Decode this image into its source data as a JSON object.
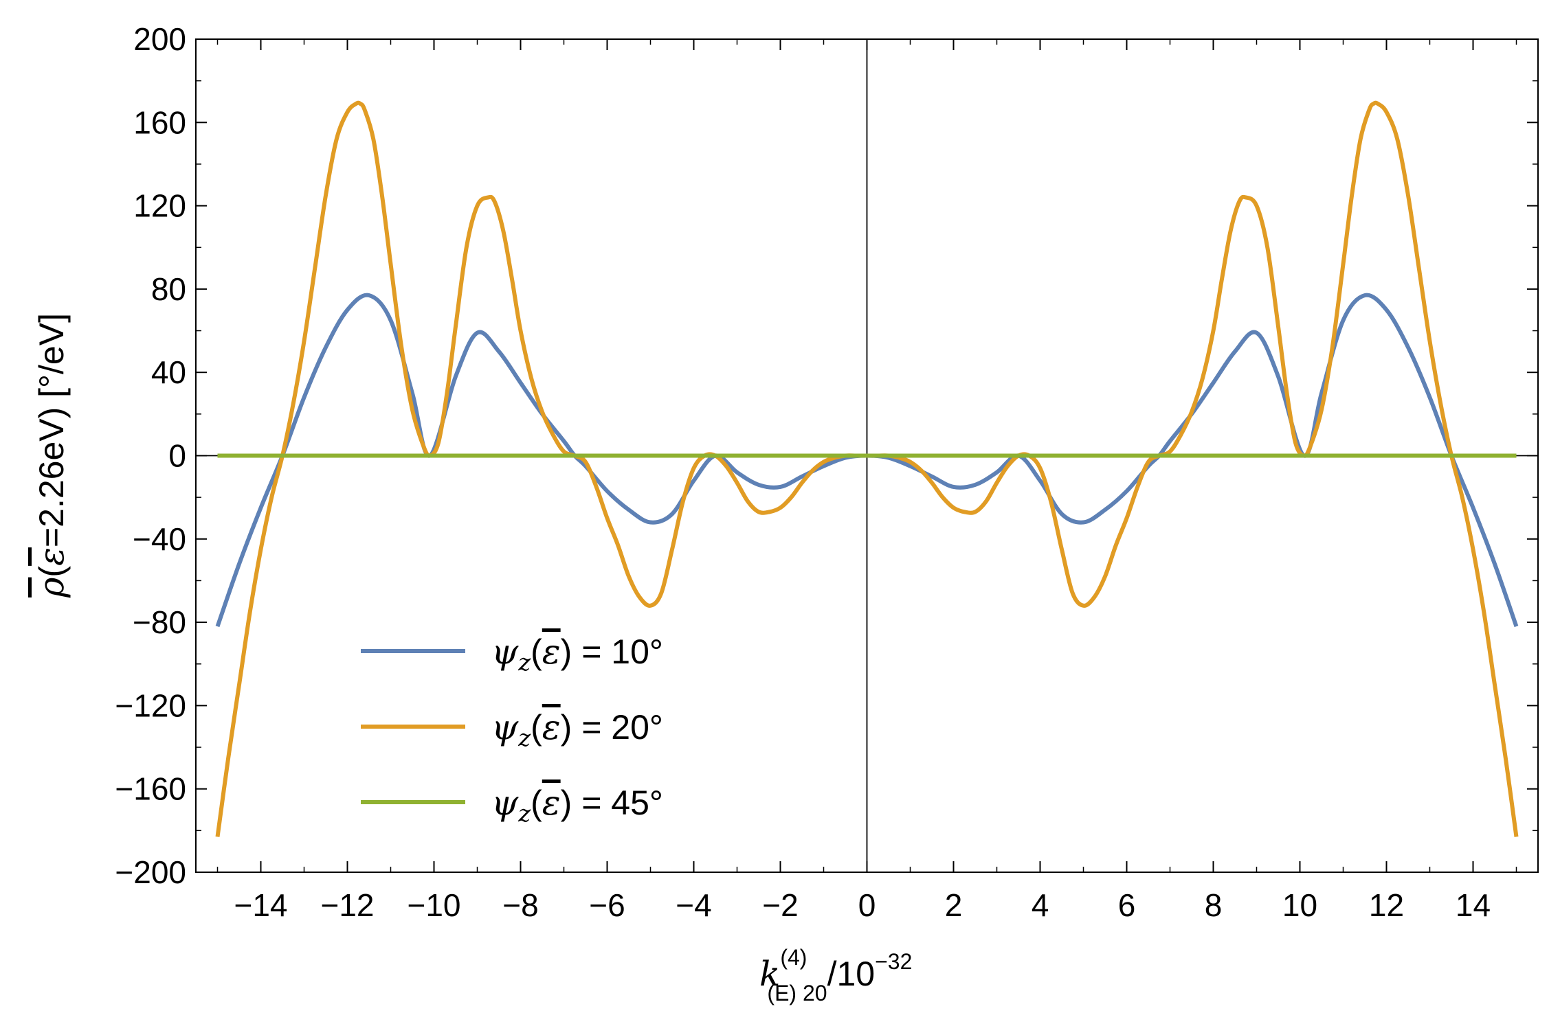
{
  "chart_data": {
    "type": "line",
    "xlabel": "k(E) 20 (4) / 10^-32",
    "ylabel": "ρ(ε=2.26eV) [°/eV]",
    "xlabel_parts": {
      "base": "k",
      "sub": "(E) 20",
      "sup": "(4)",
      "tail": "/10",
      "tail_sup": "−32"
    },
    "ylabel_parts": {
      "overbar_rho": "ρ",
      "open": "(",
      "overbar_eps": "ε",
      "rest": "=2.26eV) [°/eV]"
    },
    "xlim": [
      -15.5,
      15.5
    ],
    "ylim": [
      -200,
      200
    ],
    "x_ticks": [
      -14,
      -12,
      -10,
      -8,
      -6,
      -4,
      -2,
      0,
      2,
      4,
      6,
      8,
      10,
      12,
      14
    ],
    "x_tick_labels": [
      "−14",
      "−12",
      "−10",
      "−8",
      "−6",
      "−4",
      "−2",
      "0",
      "2",
      "4",
      "6",
      "8",
      "10",
      "12",
      "14"
    ],
    "y_ticks": [
      200,
      160,
      120,
      80,
      40,
      0,
      -40,
      -80,
      -120,
      -160,
      -200
    ],
    "y_tick_labels": [
      "200",
      "160",
      "120",
      "80",
      "40",
      "0",
      "−40",
      "−80",
      "−120",
      "−160",
      "−200"
    ],
    "grid": false,
    "legend_position": "bottom-left",
    "series": [
      {
        "name": "ψz(ε) = 10°",
        "legend": {
          "psi": "ψ",
          "sub": "z",
          "eps": "ε",
          "value": " = 10°"
        },
        "color": "#5E81B5",
        "x": [
          -15,
          -14.5,
          -14,
          -13.5,
          -13,
          -12.5,
          -12,
          -11.5,
          -11,
          -10.5,
          -10.1,
          -9.5,
          -9,
          -8.5,
          -8,
          -7.5,
          -7,
          -6.75,
          -6.5,
          -6,
          -5.5,
          -5,
          -4.5,
          -4,
          -3.5,
          -3,
          -2.5,
          -2,
          -1.5,
          -1,
          -0.5,
          0,
          0.5,
          1,
          1.5,
          2,
          2.5,
          3,
          3.5,
          4,
          4.5,
          5,
          5.5,
          6,
          6.5,
          6.75,
          7,
          7.5,
          8,
          8.5,
          9,
          9.5,
          10.1,
          10.5,
          11,
          11.5,
          12,
          12.5,
          13,
          13.5,
          14,
          14.5,
          15
        ],
        "y": [
          -82,
          -52,
          -25,
          0,
          28,
          52,
          70,
          77,
          65,
          30,
          0,
          38,
          59,
          50,
          35,
          20,
          7,
          0,
          -5,
          -17,
          -26,
          -32,
          -28,
          -12,
          0,
          -8,
          -14,
          -15,
          -10,
          -5,
          -1,
          0,
          -1,
          -5,
          -10,
          -15,
          -14,
          -8,
          0,
          -12,
          -28,
          -32,
          -26,
          -17,
          -5,
          0,
          7,
          20,
          35,
          50,
          59,
          38,
          0,
          30,
          65,
          77,
          70,
          52,
          28,
          0,
          -25,
          -52,
          -82
        ]
      },
      {
        "name": "ψz(ε) = 20°",
        "legend": {
          "psi": "ψ",
          "sub": "z",
          "eps": "ε",
          "value": " = 20°"
        },
        "color": "#E19C24",
        "x": [
          -15,
          -14.75,
          -14.5,
          -14.25,
          -14,
          -13.75,
          -13.5,
          -13.25,
          -13,
          -12.75,
          -12.5,
          -12.25,
          -12,
          -11.8,
          -11.7,
          -11.6,
          -11.4,
          -11.2,
          -11,
          -10.75,
          -10.5,
          -10.25,
          -10.1,
          -9.9,
          -9.7,
          -9.5,
          -9.25,
          -9,
          -8.75,
          -8.6,
          -8.4,
          -8.2,
          -8,
          -7.75,
          -7.5,
          -7.25,
          -7,
          -6.75,
          -6.5,
          -6.25,
          -6,
          -5.75,
          -5.5,
          -5.25,
          -5,
          -4.75,
          -4.5,
          -4.25,
          -4,
          -3.75,
          -3.5,
          -3.25,
          -3,
          -2.75,
          -2.5,
          -2.25,
          -2,
          -1.75,
          -1.5,
          -1.25,
          -1,
          -0.75,
          -0.5,
          -0.25,
          0,
          0.25,
          0.5,
          0.75,
          1,
          1.25,
          1.5,
          1.75,
          2,
          2.25,
          2.5,
          2.75,
          3,
          3.25,
          3.5,
          3.75,
          4,
          4.25,
          4.5,
          4.75,
          5,
          5.25,
          5.5,
          5.75,
          6,
          6.25,
          6.5,
          6.75,
          7,
          7.25,
          7.5,
          7.75,
          8,
          8.2,
          8.4,
          8.6,
          8.75,
          9,
          9.25,
          9.5,
          9.7,
          9.9,
          10.1,
          10.25,
          10.5,
          10.75,
          11,
          11.2,
          11.4,
          11.6,
          11.7,
          11.8,
          12,
          12.25,
          12.5,
          12.75,
          13,
          13.25,
          13.5,
          13.75,
          14,
          14.25,
          14.5,
          14.75,
          15
        ],
        "y": [
          -183,
          -145,
          -110,
          -75,
          -45,
          -20,
          0,
          25,
          55,
          90,
          125,
          152,
          165,
          169,
          169,
          166,
          152,
          125,
          92,
          52,
          22,
          5,
          0,
          6,
          30,
          62,
          100,
          120,
          124,
          122,
          108,
          85,
          60,
          37,
          21,
          10,
          2,
          0,
          -3,
          -15,
          -30,
          -43,
          -58,
          -68,
          -72,
          -66,
          -45,
          -22,
          -6,
          0,
          0,
          -5,
          -13,
          -22,
          -27,
          -27,
          -25,
          -20,
          -13,
          -7,
          -3,
          -1,
          0,
          0,
          0,
          0,
          0,
          -1,
          -3,
          -7,
          -13,
          -20,
          -25,
          -27,
          -27,
          -22,
          -13,
          -5,
          0,
          0,
          -6,
          -22,
          -45,
          -66,
          -72,
          -68,
          -58,
          -43,
          -30,
          -15,
          -3,
          0,
          2,
          10,
          21,
          37,
          60,
          85,
          108,
          122,
          124,
          120,
          100,
          62,
          30,
          6,
          0,
          5,
          22,
          52,
          92,
          125,
          152,
          166,
          169,
          169,
          165,
          152,
          125,
          90,
          55,
          25,
          0,
          -20,
          -45,
          -75,
          -110,
          -145,
          -183
        ]
      },
      {
        "name": "ψz(ε) = 45°",
        "legend": {
          "psi": "ψ",
          "sub": "z",
          "eps": "ε",
          "value": " = 45°"
        },
        "color": "#8FB131",
        "x": [
          -15,
          15
        ],
        "y": [
          0,
          0
        ]
      }
    ]
  }
}
